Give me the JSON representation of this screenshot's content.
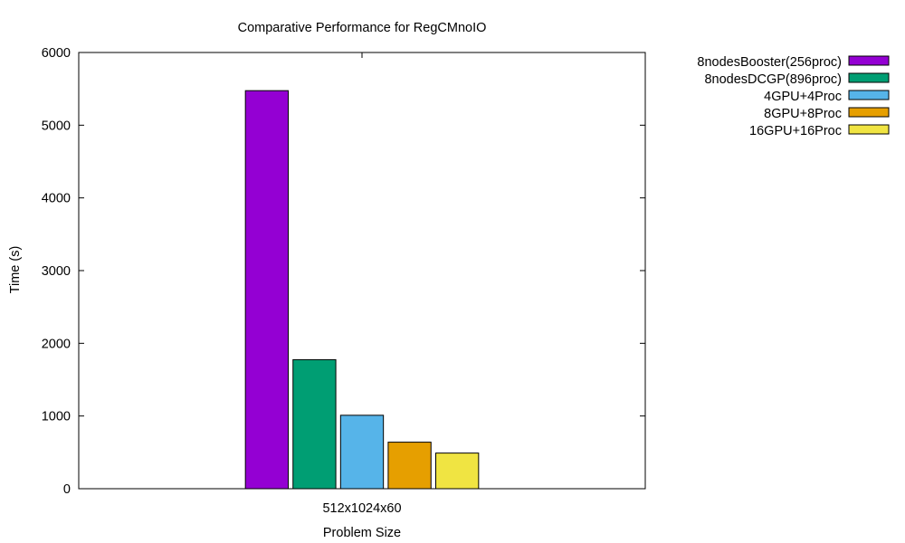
{
  "chart_data": {
    "type": "bar",
    "title": "Comparative Performance for RegCMnoIO",
    "xlabel": "Problem Size",
    "ylabel": "Time (s)",
    "categories": [
      "512x1024x60"
    ],
    "ylim": [
      0,
      6000
    ],
    "yticks": [
      "0",
      "1000",
      "2000",
      "3000",
      "4000",
      "5000",
      "6000"
    ],
    "grid": false,
    "legend_position": "outside-top-right",
    "series": [
      {
        "name": "8nodesBooster(256proc)",
        "values": [
          5475
        ],
        "color": "#9400d3"
      },
      {
        "name": "8nodesDCGP(896proc)",
        "values": [
          1775
        ],
        "color": "#009e73"
      },
      {
        "name": "4GPU+4Proc",
        "values": [
          1010
        ],
        "color": "#56b4e9"
      },
      {
        "name": "8GPU+8Proc",
        "values": [
          640
        ],
        "color": "#e69f00"
      },
      {
        "name": "16GPU+16Proc",
        "values": [
          490
        ],
        "color": "#f0e442"
      }
    ]
  }
}
